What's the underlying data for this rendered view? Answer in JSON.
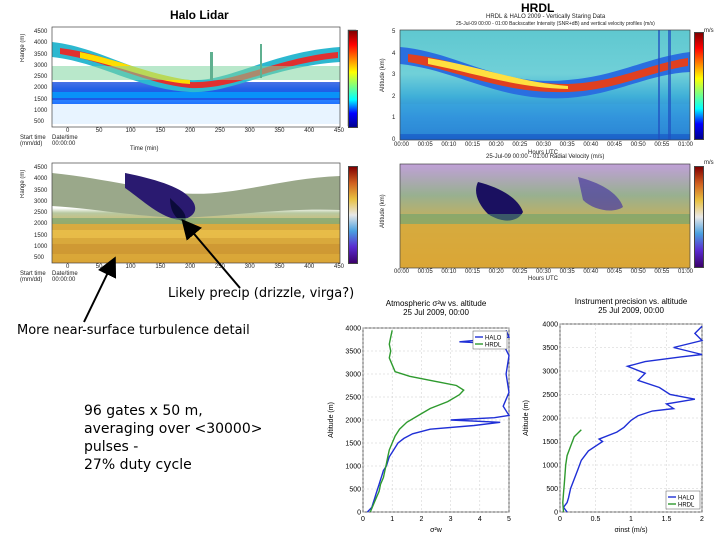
{
  "headers": {
    "left": "Halo Lidar",
    "right": "HRDL"
  },
  "annotations": {
    "precip": "Likely precip (drizzle, virga?)",
    "turbulence": "More near-surface turbulence detail",
    "gates": "96 gates x 50 m,\naveraging over <30000>\npulses -\n27% duty cycle"
  },
  "hrdl_top": {
    "title1": "HRDL & HALO 2009 - Vertically Staring Data",
    "title2": "25-Jul-09 00:00 - 01:00 Backscatter Intensity (SNR+dB) and vertical velocity profiles (m/s)",
    "ylabel": "Altitude (km)",
    "xlabel": "Hours UTC",
    "cb_top": "m/s"
  },
  "hrdl_bottom": {
    "title": "25-Jul-09 00:00 - 01:00 Radial Velocity (m/s)",
    "ylabel": "Altitude (km)",
    "xlabel": "Hours UTC",
    "cb_top": "m/s"
  },
  "halo_top": {
    "ylabel": "Range (m)",
    "xlabel": "Time (min)",
    "start_label": "Start time\n(mm/dd)",
    "date_label": "Date/time\n00:00:00"
  },
  "halo_bottom": {
    "ylabel": "Range (m)",
    "xlabel": "Time (min)",
    "start_label": "Start time\n(mm/dd)",
    "date_label": "Date/time\n00:00:00"
  },
  "hours_ticks": [
    "00:00",
    "00:05",
    "00:10",
    "00:15",
    "00:20",
    "00:25",
    "00:30",
    "00:35",
    "00:40",
    "00:45",
    "00:50",
    "00:55",
    "01:00"
  ],
  "halo_x_ticks": [
    "0",
    "50",
    "100",
    "150",
    "200",
    "250",
    "300",
    "350",
    "400",
    "450"
  ],
  "halo_y_ticks": [
    "4500",
    "4000",
    "3500",
    "3000",
    "2500",
    "2000",
    "1500",
    "1000",
    "500"
  ],
  "km_ticks": [
    "5",
    "4",
    "3",
    "2",
    "1",
    "0"
  ],
  "chart_data": [
    {
      "type": "line",
      "title": "Atmospheric σ²w vs. altitude",
      "subtitle": "25 Jul 2009, 00:00",
      "xlabel": "σ²w",
      "ylabel": "Altitude (m)",
      "xlim": [
        0,
        5
      ],
      "ylim": [
        0,
        4000
      ],
      "x_ticks": [
        "0",
        "1",
        "2",
        "3",
        "4",
        "5"
      ],
      "y_ticks": [
        "0",
        "500",
        "1000",
        "1500",
        "2000",
        "2500",
        "3000",
        "3500",
        "4000"
      ],
      "legend": "top-right",
      "series": [
        {
          "name": "HALO",
          "color": "#1f2fd6",
          "points": [
            [
              0.15,
              0
            ],
            [
              0.3,
              100
            ],
            [
              0.35,
              200
            ],
            [
              0.4,
              300
            ],
            [
              0.45,
              400
            ],
            [
              0.5,
              500
            ],
            [
              0.55,
              600
            ],
            [
              0.6,
              700
            ],
            [
              0.65,
              800
            ],
            [
              0.7,
              900
            ],
            [
              0.8,
              1000
            ],
            [
              0.85,
              1100
            ],
            [
              0.9,
              1200
            ],
            [
              1.0,
              1300
            ],
            [
              1.1,
              1400
            ],
            [
              1.2,
              1500
            ],
            [
              1.4,
              1600
            ],
            [
              1.7,
              1700
            ],
            [
              2.3,
              1800
            ],
            [
              3.8,
              1880
            ],
            [
              4.7,
              1950
            ],
            [
              3.0,
              2000
            ],
            [
              4.5,
              2050
            ],
            [
              5.0,
              2100
            ],
            [
              4.8,
              2300
            ],
            [
              5.0,
              2600
            ],
            [
              4.9,
              3000
            ],
            [
              5.0,
              3400
            ],
            [
              4.8,
              3650
            ],
            [
              3.3,
              3700
            ],
            [
              5.0,
              3800
            ],
            [
              4.9,
              3950
            ]
          ]
        },
        {
          "name": "HRDL",
          "color": "#2e9a2e",
          "points": [
            [
              0.25,
              0
            ],
            [
              0.35,
              150
            ],
            [
              0.45,
              300
            ],
            [
              0.55,
              450
            ],
            [
              0.6,
              600
            ],
            [
              0.7,
              750
            ],
            [
              0.75,
              900
            ],
            [
              0.8,
              1050
            ],
            [
              0.85,
              1200
            ],
            [
              0.9,
              1350
            ],
            [
              1.0,
              1500
            ],
            [
              1.1,
              1650
            ],
            [
              1.25,
              1800
            ],
            [
              1.5,
              1950
            ],
            [
              1.9,
              2100
            ],
            [
              2.3,
              2250
            ],
            [
              2.9,
              2400
            ],
            [
              3.3,
              2550
            ],
            [
              3.45,
              2650
            ],
            [
              3.2,
              2750
            ],
            [
              2.4,
              2850
            ],
            [
              1.6,
              2950
            ],
            [
              1.1,
              3050
            ],
            [
              1.0,
              3200
            ],
            [
              0.9,
              3350
            ],
            [
              0.95,
              3500
            ],
            [
              0.9,
              3650
            ],
            [
              0.95,
              3800
            ],
            [
              1.0,
              3950
            ]
          ]
        }
      ]
    },
    {
      "type": "line",
      "title": "Instrument precision vs. altitude",
      "subtitle": "25 Jul 2009, 00:00",
      "xlabel": "σinst (m/s)",
      "ylabel": "Altitude (m)",
      "xlim": [
        0,
        2
      ],
      "ylim": [
        0,
        4000
      ],
      "x_ticks": [
        "0",
        "0.5",
        "1",
        "1.5",
        "2"
      ],
      "y_ticks": [
        "0",
        "500",
        "1000",
        "1500",
        "2000",
        "2500",
        "3000",
        "3500",
        "4000"
      ],
      "legend": "bottom-right",
      "series": [
        {
          "name": "HALO",
          "color": "#1f2fd6",
          "points": [
            [
              0.1,
              0
            ],
            [
              0.05,
              100
            ],
            [
              0.1,
              200
            ],
            [
              0.12,
              300
            ],
            [
              0.15,
              500
            ],
            [
              0.2,
              700
            ],
            [
              0.25,
              900
            ],
            [
              0.3,
              1100
            ],
            [
              0.4,
              1300
            ],
            [
              0.6,
              1500
            ],
            [
              0.55,
              1550
            ],
            [
              0.8,
              1700
            ],
            [
              0.9,
              1800
            ],
            [
              1.0,
              1950
            ],
            [
              1.1,
              2050
            ],
            [
              1.3,
              2150
            ],
            [
              1.6,
              2200
            ],
            [
              1.5,
              2300
            ],
            [
              1.9,
              2400
            ],
            [
              1.55,
              2500
            ],
            [
              1.4,
              2650
            ],
            [
              1.1,
              2800
            ],
            [
              1.2,
              2950
            ],
            [
              0.95,
              3100
            ],
            [
              1.2,
              3200
            ],
            [
              1.7,
              3300
            ],
            [
              2.0,
              3350
            ],
            [
              1.6,
              3500
            ],
            [
              2.0,
              3650
            ],
            [
              1.9,
              3800
            ],
            [
              2.0,
              3950
            ]
          ]
        },
        {
          "name": "HRDL",
          "color": "#2e9a2e",
          "points": [
            [
              0.05,
              0
            ],
            [
              0.04,
              200
            ],
            [
              0.05,
              400
            ],
            [
              0.06,
              600
            ],
            [
              0.07,
              800
            ],
            [
              0.08,
              1000
            ],
            [
              0.1,
              1200
            ],
            [
              0.15,
              1400
            ],
            [
              0.2,
              1600
            ],
            [
              0.3,
              1750
            ]
          ]
        }
      ]
    }
  ]
}
